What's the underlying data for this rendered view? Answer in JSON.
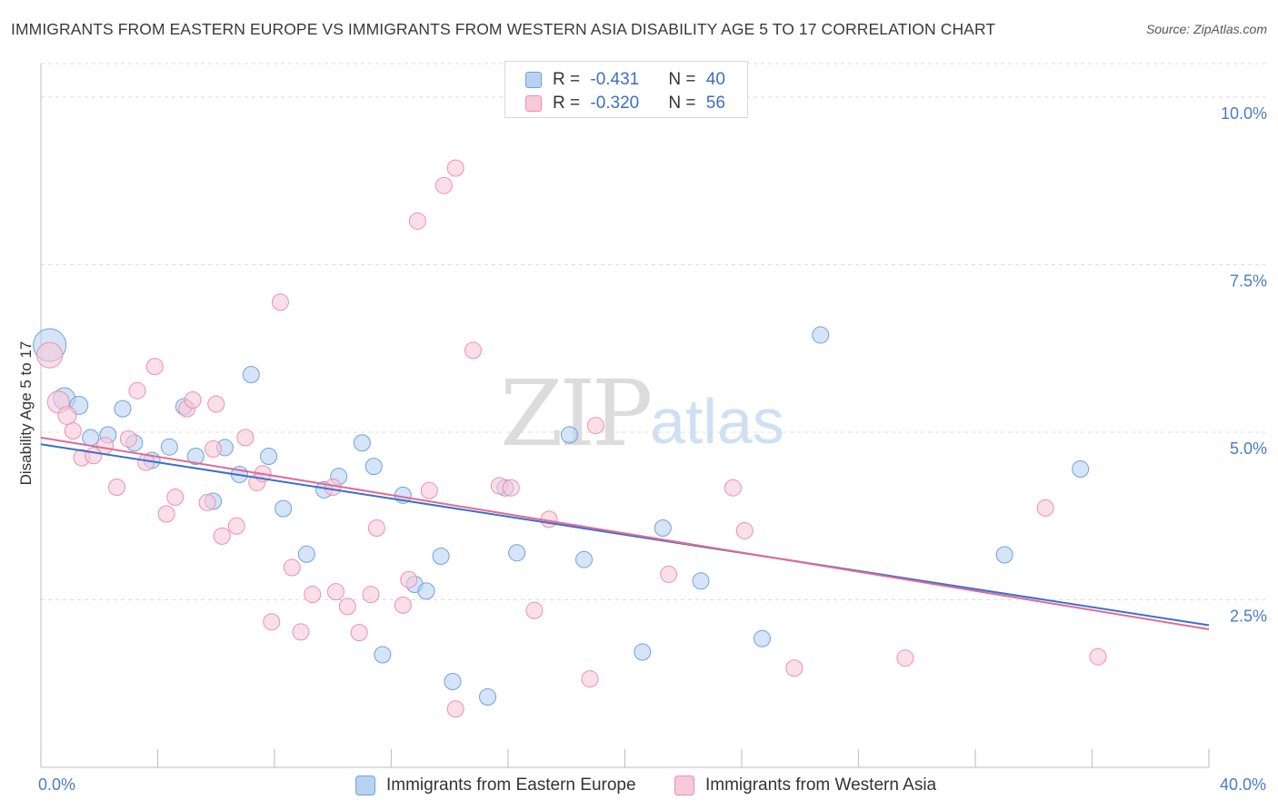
{
  "title": "IMMIGRANTS FROM EASTERN EUROPE VS IMMIGRANTS FROM WESTERN ASIA DISABILITY AGE 5 TO 17 CORRELATION CHART",
  "source": "Source: ZipAtlas.com",
  "watermark": {
    "zip": "ZIP",
    "atlas": "atlas"
  },
  "legend": {
    "r_label": "R = ",
    "n_label": "N = ",
    "rows": [
      {
        "r": "-0.431",
        "n": "40"
      },
      {
        "r": "-0.320",
        "n": "56"
      }
    ]
  },
  "chart_data": {
    "type": "scatter",
    "xlabel": "",
    "ylabel": "Disability Age 5 to 17",
    "xlim": [
      0,
      40
    ],
    "ylim": [
      0,
      10.5
    ],
    "x_tick_labels": [
      "0.0%",
      "40.0%"
    ],
    "y_ticks": [
      2.5,
      5.0,
      7.5,
      10.0
    ],
    "y_tick_labels": [
      "2.5%",
      "5.0%",
      "7.5%",
      "10.0%"
    ],
    "grid": "horizontal dashed",
    "legend_position": "top-center",
    "series": [
      {
        "name": "Immigrants from Eastern Europe",
        "color": "#6fa1e0",
        "fill": "#b9d2f2",
        "trend": {
          "x0": 0,
          "y0": 4.82,
          "x1": 40,
          "y1": 2.12,
          "color": "#3a6fcf"
        },
        "points": [
          [
            0.3,
            6.3,
            18
          ],
          [
            0.8,
            5.5,
            12
          ],
          [
            1.3,
            5.4,
            10
          ],
          [
            1.7,
            4.92,
            9
          ],
          [
            2.3,
            4.96,
            9
          ],
          [
            2.8,
            5.35,
            9
          ],
          [
            3.2,
            4.84,
            9
          ],
          [
            3.8,
            4.58,
            9
          ],
          [
            4.4,
            4.78,
            9
          ],
          [
            4.9,
            5.38,
            9
          ],
          [
            5.3,
            4.64,
            9
          ],
          [
            5.9,
            3.97,
            9
          ],
          [
            6.3,
            4.77,
            9
          ],
          [
            6.8,
            4.37,
            9
          ],
          [
            7.2,
            5.86,
            9
          ],
          [
            7.8,
            4.64,
            9
          ],
          [
            8.3,
            3.86,
            9
          ],
          [
            9.1,
            3.18,
            9
          ],
          [
            9.7,
            4.14,
            9
          ],
          [
            10.2,
            4.34,
            9
          ],
          [
            11.0,
            4.84,
            9
          ],
          [
            11.4,
            4.49,
            9
          ],
          [
            11.7,
            1.68,
            9
          ],
          [
            12.4,
            4.06,
            9
          ],
          [
            12.8,
            2.73,
            9
          ],
          [
            13.2,
            2.63,
            9
          ],
          [
            13.7,
            3.15,
            9
          ],
          [
            14.1,
            1.28,
            9
          ],
          [
            15.3,
            1.05,
            9
          ],
          [
            15.9,
            4.17,
            9
          ],
          [
            16.3,
            3.2,
            9
          ],
          [
            18.1,
            4.96,
            9
          ],
          [
            18.6,
            3.1,
            9
          ],
          [
            20.6,
            1.72,
            9
          ],
          [
            21.3,
            3.57,
            9
          ],
          [
            22.6,
            2.78,
            9
          ],
          [
            24.7,
            1.92,
            9
          ],
          [
            26.7,
            6.45,
            9
          ],
          [
            33.0,
            3.17,
            9
          ],
          [
            35.6,
            4.45,
            9
          ]
        ]
      },
      {
        "name": "Immigrants from Western Asia",
        "color": "#ee8fae",
        "fill": "#f8c9d8",
        "trend": {
          "x0": 0,
          "y0": 4.92,
          "x1": 40,
          "y1": 2.06,
          "color": "#e06b93"
        },
        "points": [
          [
            0.3,
            6.15,
            14
          ],
          [
            0.6,
            5.45,
            12
          ],
          [
            0.9,
            5.25,
            10
          ],
          [
            1.1,
            5.02,
            9
          ],
          [
            1.4,
            4.62,
            9
          ],
          [
            1.8,
            4.65,
            9
          ],
          [
            2.2,
            4.8,
            9
          ],
          [
            2.6,
            4.18,
            9
          ],
          [
            3.0,
            4.9,
            9
          ],
          [
            3.3,
            5.62,
            9
          ],
          [
            3.6,
            4.55,
            9
          ],
          [
            3.9,
            5.98,
            9
          ],
          [
            4.3,
            3.78,
            9
          ],
          [
            4.6,
            4.03,
            9
          ],
          [
            5.0,
            5.35,
            9
          ],
          [
            5.2,
            5.48,
            9
          ],
          [
            5.7,
            3.95,
            9
          ],
          [
            5.9,
            4.75,
            9
          ],
          [
            6.0,
            5.42,
            9
          ],
          [
            6.2,
            3.45,
            9
          ],
          [
            6.7,
            3.6,
            9
          ],
          [
            7.0,
            4.92,
            9
          ],
          [
            7.4,
            4.25,
            9
          ],
          [
            7.6,
            4.38,
            9
          ],
          [
            7.9,
            2.17,
            9
          ],
          [
            8.2,
            6.94,
            9
          ],
          [
            8.6,
            2.98,
            9
          ],
          [
            8.9,
            2.02,
            9
          ],
          [
            9.3,
            2.58,
            9
          ],
          [
            10.0,
            4.18,
            9
          ],
          [
            10.1,
            2.62,
            9
          ],
          [
            10.5,
            2.4,
            9
          ],
          [
            10.9,
            2.01,
            9
          ],
          [
            11.3,
            2.58,
            9
          ],
          [
            11.5,
            3.57,
            9
          ],
          [
            12.4,
            2.42,
            9
          ],
          [
            12.6,
            2.8,
            9
          ],
          [
            12.9,
            8.15,
            9
          ],
          [
            13.3,
            4.13,
            9
          ],
          [
            13.8,
            8.68,
            9
          ],
          [
            14.2,
            8.94,
            9
          ],
          [
            14.2,
            0.87,
            9
          ],
          [
            14.8,
            6.22,
            9
          ],
          [
            15.7,
            4.2,
            9
          ],
          [
            16.1,
            4.17,
            9
          ],
          [
            16.9,
            2.34,
            9
          ],
          [
            17.4,
            3.7,
            9
          ],
          [
            18.8,
            1.32,
            9
          ],
          [
            19.0,
            5.1,
            9
          ],
          [
            21.5,
            2.88,
            9
          ],
          [
            23.7,
            4.17,
            9
          ],
          [
            24.1,
            3.53,
            9
          ],
          [
            25.8,
            1.48,
            9
          ],
          [
            29.6,
            1.63,
            9
          ],
          [
            34.4,
            3.87,
            9
          ],
          [
            36.2,
            1.65,
            9
          ]
        ]
      }
    ]
  }
}
